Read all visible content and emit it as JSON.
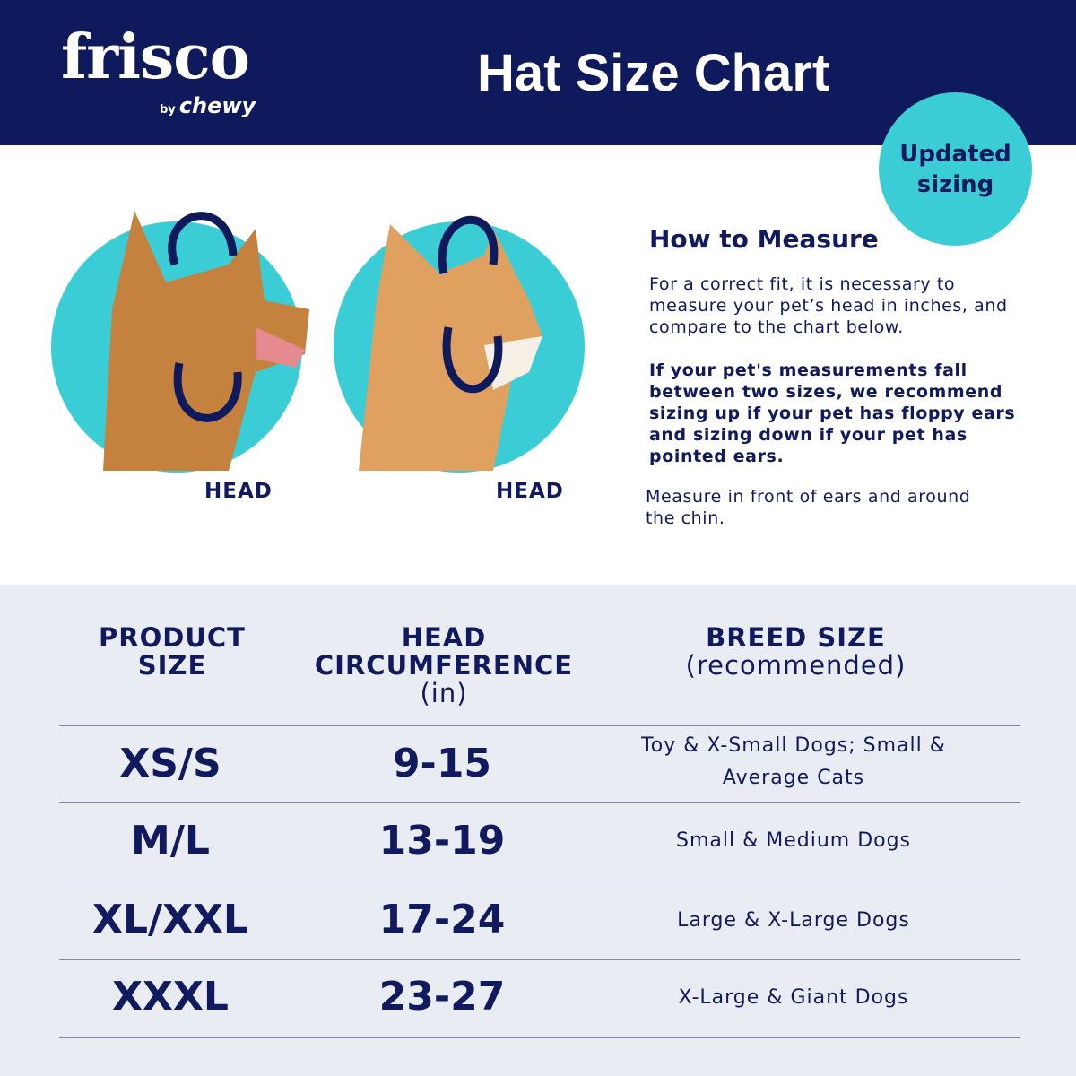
{
  "brand": {
    "name": "frisco",
    "byline": "by",
    "parent": "chewy"
  },
  "header": {
    "title": "Hat Size Chart"
  },
  "badge": {
    "text": "Updated sizing"
  },
  "colors": {
    "navy": "#0f1a5c",
    "teal": "#3bcdd5",
    "table_bg": "#e9edf3"
  },
  "images": {
    "dog_label": "HEAD",
    "cat_label": "HEAD"
  },
  "how_to": {
    "heading": "How to Measure",
    "intro": "For a correct fit, it is necessary to measure your pet’s head in inches, and compare to the chart below.",
    "advice": "If your pet's measurements fall between two sizes, we recommend sizing up if your pet has floppy ears and sizing down if your pet has pointed ears.",
    "instruction": "Measure in front of ears and around the chin."
  },
  "table": {
    "headers": [
      {
        "main": "PRODUCT SIZE",
        "sub": ""
      },
      {
        "main": "HEAD CIRCUMFERENCE",
        "sub": "(in)"
      },
      {
        "main": "BREED SIZE",
        "sub": "(recommended)"
      }
    ],
    "rows": [
      {
        "size": "XS/S",
        "circumference": "9-15",
        "breed": "Toy & X-Small Dogs; Small & Average Cats"
      },
      {
        "size": "M/L",
        "circumference": "13-19",
        "breed": "Small & Medium Dogs"
      },
      {
        "size": "XL/XXL",
        "circumference": "17-24",
        "breed": "Large & X-Large Dogs"
      },
      {
        "size": "XXXL",
        "circumference": "23-27",
        "breed": "X-Large & Giant Dogs"
      }
    ]
  }
}
